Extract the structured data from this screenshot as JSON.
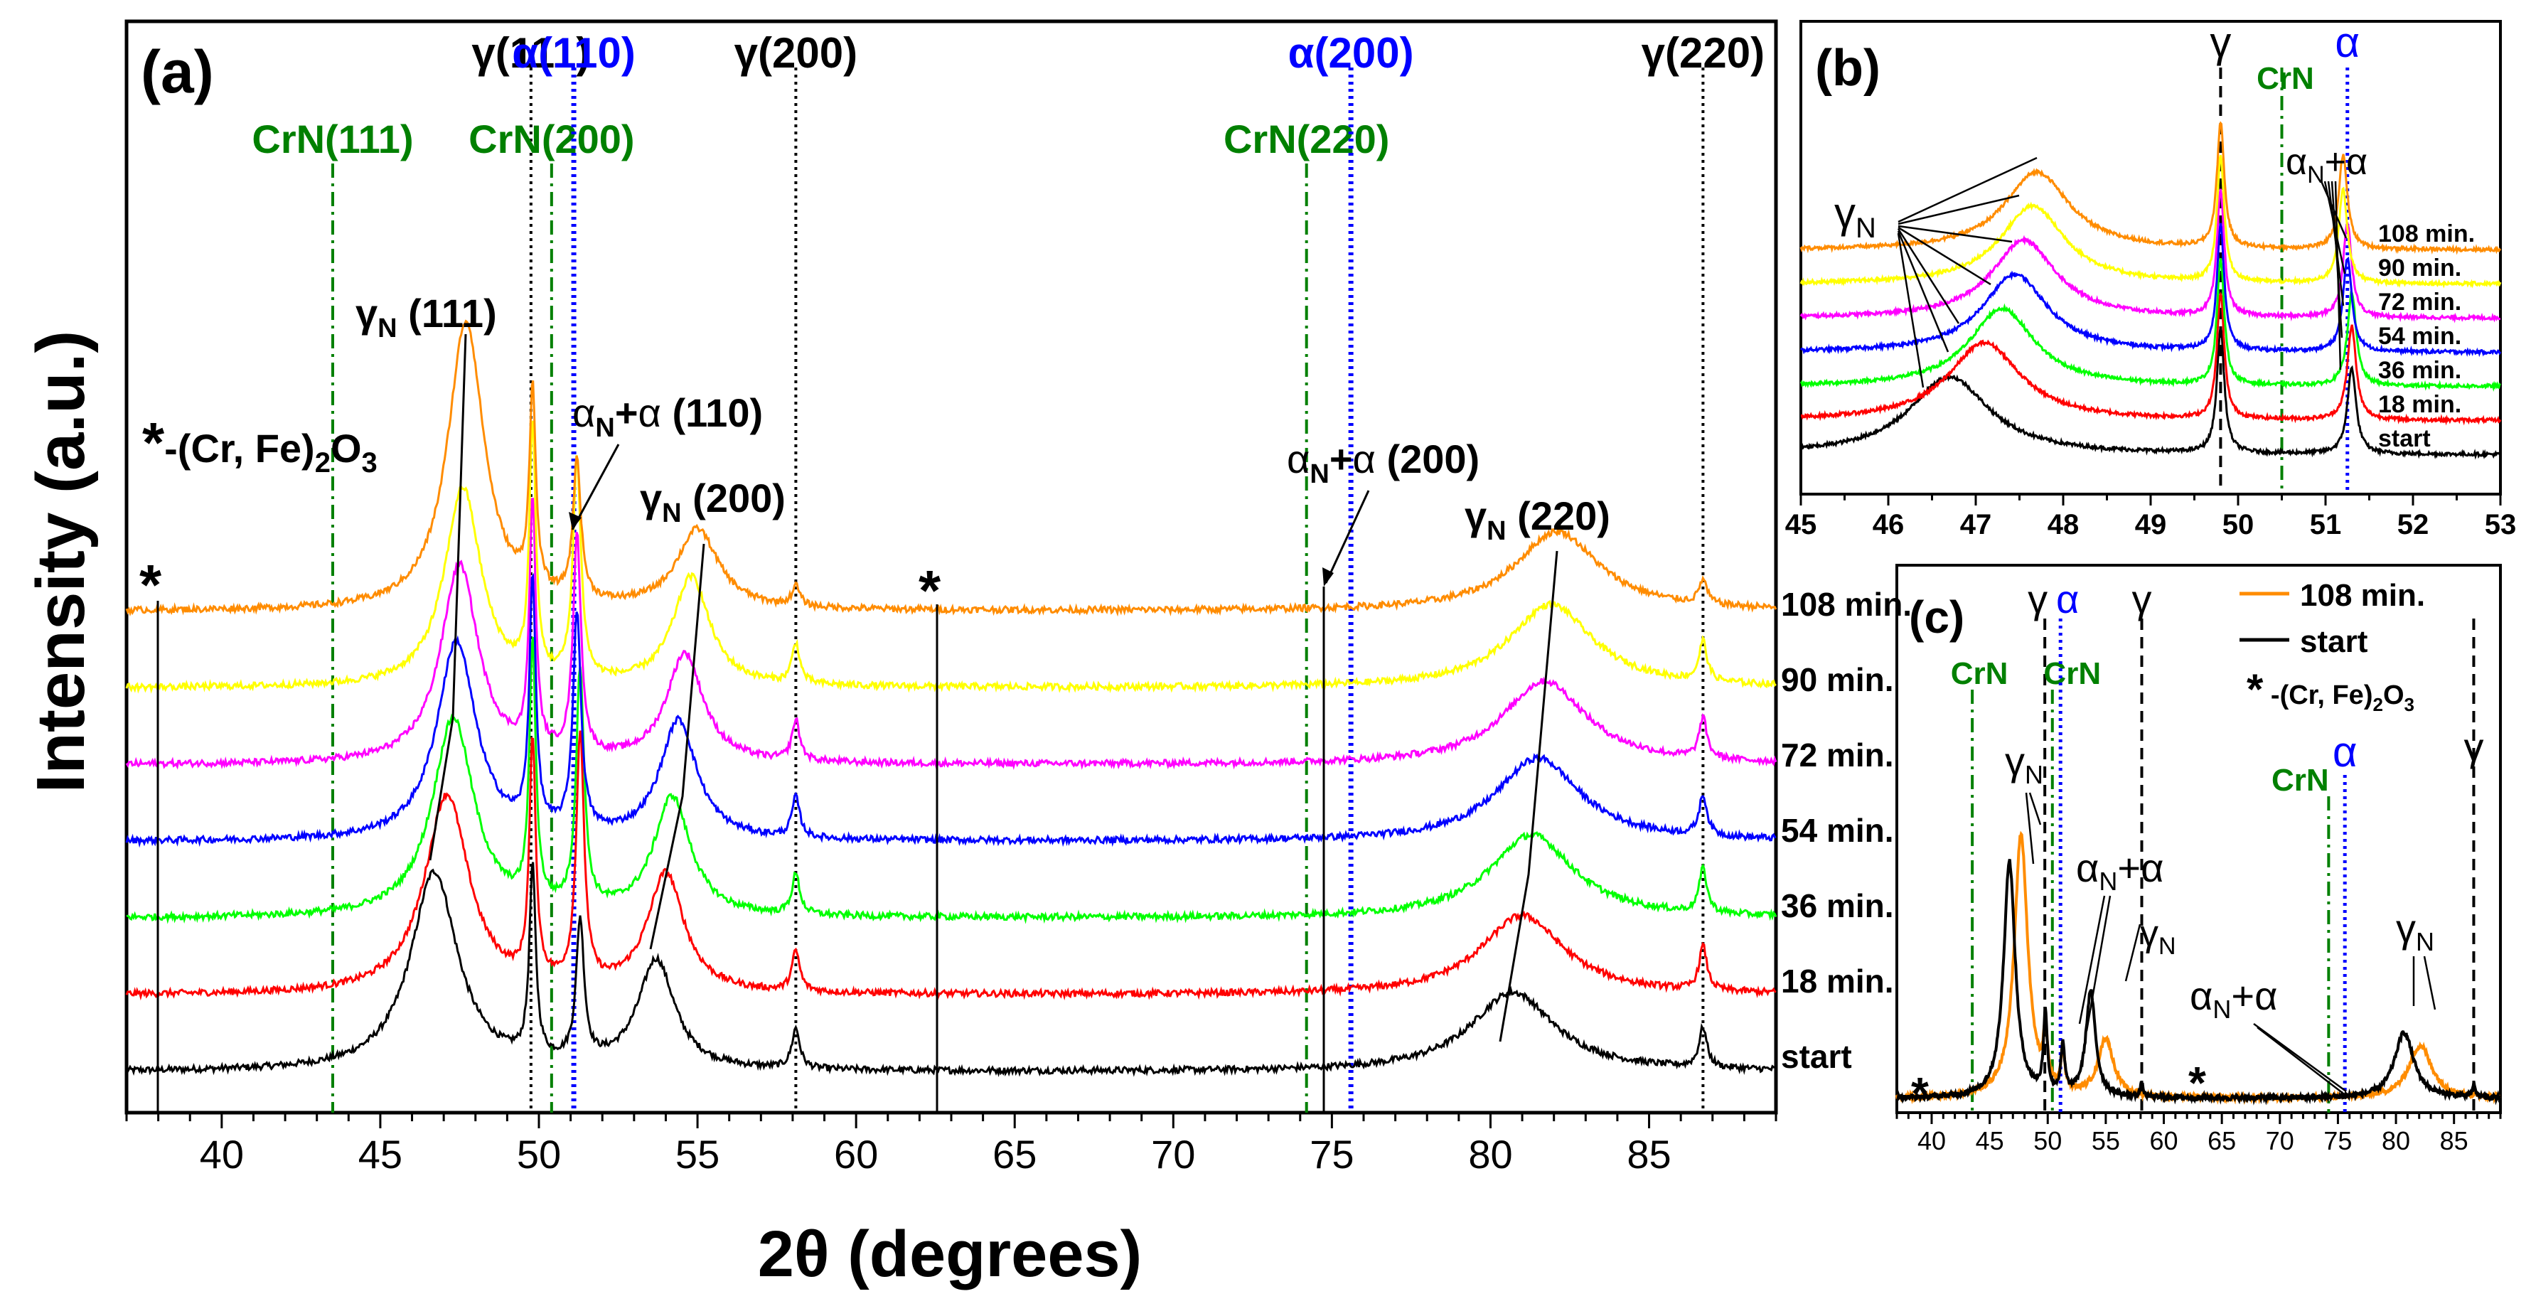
{
  "chart_data": [
    {
      "panel": "(a)",
      "type": "line",
      "xlabel": "2θ (degrees)",
      "ylabel": "Intensity (a.u.)",
      "xlim": [
        37,
        89
      ],
      "xticks": [
        40,
        45,
        50,
        55,
        60,
        65,
        70,
        75,
        80,
        85
      ],
      "series": [
        {
          "name": "start",
          "color": "#000000",
          "offset": 0,
          "ppos": [
            46.7,
            49.8,
            51.3,
            53.7,
            58.1,
            80.7,
            86.7
          ],
          "pamp": [
            1.0,
            0.95,
            0.7,
            0.55,
            0.2,
            0.4,
            0.2
          ],
          "pw": [
            0.9,
            0.12,
            0.15,
            0.7,
            0.15,
            1.6,
            0.15
          ]
        },
        {
          "name": "18 min.",
          "color": "#ff0000",
          "offset": 1,
          "ppos": [
            47.1,
            49.8,
            51.3,
            54.0,
            58.1,
            81.0,
            86.7
          ],
          "pamp": [
            1.0,
            1.2,
            1.25,
            0.6,
            0.2,
            0.4,
            0.22
          ],
          "pw": [
            0.85,
            0.12,
            0.15,
            0.7,
            0.15,
            1.6,
            0.15
          ]
        },
        {
          "name": "36 min.",
          "color": "#00ff00",
          "offset": 2,
          "ppos": [
            47.3,
            49.8,
            51.3,
            54.2,
            58.1,
            81.3,
            86.7
          ],
          "pamp": [
            1.0,
            1.3,
            1.2,
            0.6,
            0.2,
            0.42,
            0.22
          ],
          "pw": [
            0.8,
            0.12,
            0.15,
            0.7,
            0.15,
            1.6,
            0.15
          ]
        },
        {
          "name": "54 min.",
          "color": "#0000ff",
          "offset": 3,
          "ppos": [
            47.4,
            49.8,
            51.2,
            54.4,
            58.1,
            81.5,
            86.7
          ],
          "pamp": [
            1.0,
            1.25,
            1.1,
            0.6,
            0.2,
            0.42,
            0.2
          ],
          "pw": [
            0.75,
            0.12,
            0.15,
            0.7,
            0.15,
            1.6,
            0.15
          ]
        },
        {
          "name": "72 min.",
          "color": "#ff00ff",
          "offset": 4,
          "ppos": [
            47.5,
            49.8,
            51.2,
            54.6,
            58.1,
            81.7,
            86.7
          ],
          "pamp": [
            1.0,
            1.25,
            1.1,
            0.55,
            0.2,
            0.42,
            0.2
          ],
          "pw": [
            0.72,
            0.12,
            0.15,
            0.7,
            0.15,
            1.6,
            0.15
          ]
        },
        {
          "name": "90 min.",
          "color": "#ffff00",
          "offset": 5,
          "ppos": [
            47.6,
            49.8,
            51.2,
            54.8,
            58.1,
            81.9,
            86.7
          ],
          "pamp": [
            1.0,
            1.25,
            1.1,
            0.55,
            0.2,
            0.42,
            0.2
          ],
          "pw": [
            0.7,
            0.12,
            0.15,
            0.7,
            0.15,
            1.6,
            0.15
          ]
        },
        {
          "name": "108 min.",
          "color": "#ff8c00",
          "offset": 6,
          "ppos": [
            47.7,
            49.8,
            51.2,
            55.0,
            58.1,
            82.1,
            86.7
          ],
          "pamp": [
            1.45,
            1.0,
            0.7,
            0.4,
            0.1,
            0.4,
            0.12
          ],
          "pw": [
            0.7,
            0.12,
            0.15,
            0.8,
            0.15,
            1.6,
            0.15
          ]
        }
      ],
      "reference_lines": [
        {
          "x": 43.5,
          "label": "CrN(111)",
          "color": "#008000",
          "style": "dashdot"
        },
        {
          "x": 49.75,
          "label": "γ(111)",
          "color": "#000000",
          "style": "dotted"
        },
        {
          "x": 50.4,
          "label": "CrN(200)",
          "color": "#008000",
          "style": "dashdot"
        },
        {
          "x": 51.1,
          "label": "α(110)",
          "color": "#0000ff",
          "style": "dotted"
        },
        {
          "x": 58.1,
          "label": "γ(200)",
          "color": "#000000",
          "style": "dotted"
        },
        {
          "x": 74.2,
          "label": "CrN(220)",
          "color": "#008000",
          "style": "dashdot"
        },
        {
          "x": 75.6,
          "label": "α(200)",
          "color": "#0000ff",
          "style": "dotted"
        },
        {
          "x": 86.7,
          "label": "γ(220)",
          "color": "#000000",
          "style": "dotted"
        }
      ],
      "annotations": [
        "γN (111)",
        "αN+α (110)",
        "γN (200)",
        "αN+α (200)",
        "γN (220)",
        "*-(Cr, Fe)2O3",
        "*",
        "*"
      ]
    },
    {
      "panel": "(b)",
      "type": "line",
      "xlim": [
        45,
        53
      ],
      "xticks": [
        45,
        46,
        47,
        48,
        49,
        50,
        51,
        52,
        53
      ],
      "series": [
        {
          "name": "start",
          "color": "#000000",
          "offset": 0,
          "ppos": [
            46.7,
            49.8,
            51.3
          ],
          "pamp": [
            1.0,
            1.6,
            1.1
          ],
          "pw": [
            0.55,
            0.05,
            0.06
          ]
        },
        {
          "name": "18 min.",
          "color": "#ff0000",
          "offset": 1,
          "ppos": [
            47.1,
            49.8,
            51.3
          ],
          "pamp": [
            1.0,
            1.6,
            1.2
          ],
          "pw": [
            0.5,
            0.05,
            0.06
          ]
        },
        {
          "name": "36 min.",
          "color": "#00ff00",
          "offset": 2,
          "ppos": [
            47.3,
            49.8,
            51.3
          ],
          "pamp": [
            1.0,
            1.6,
            1.2
          ],
          "pw": [
            0.45,
            0.05,
            0.06
          ]
        },
        {
          "name": "54 min.",
          "color": "#0000ff",
          "offset": 3,
          "ppos": [
            47.45,
            49.8,
            51.25
          ],
          "pamp": [
            1.0,
            1.6,
            1.2
          ],
          "pw": [
            0.45,
            0.05,
            0.06
          ]
        },
        {
          "name": "72 min.",
          "color": "#ff00ff",
          "offset": 4,
          "ppos": [
            47.55,
            49.8,
            51.25
          ],
          "pamp": [
            1.0,
            1.6,
            1.2
          ],
          "pw": [
            0.45,
            0.05,
            0.06
          ]
        },
        {
          "name": "90 min.",
          "color": "#ffff00",
          "offset": 5,
          "ppos": [
            47.65,
            49.8,
            51.2
          ],
          "pamp": [
            1.0,
            1.6,
            1.2
          ],
          "pw": [
            0.45,
            0.05,
            0.06
          ]
        },
        {
          "name": "108 min.",
          "color": "#ff8c00",
          "offset": 6,
          "ppos": [
            47.7,
            49.8,
            51.2
          ],
          "pamp": [
            1.0,
            1.6,
            1.2
          ],
          "pw": [
            0.45,
            0.05,
            0.06
          ]
        }
      ],
      "reference_lines": [
        {
          "x": 49.8,
          "label": "γ",
          "color": "#000000",
          "style": "dashed"
        },
        {
          "x": 50.5,
          "label": "CrN",
          "color": "#008000",
          "style": "dashdot"
        },
        {
          "x": 51.25,
          "label": "α",
          "color": "#0000ff",
          "style": "dotted"
        }
      ],
      "annotations": [
        "γN",
        "αN+α"
      ]
    },
    {
      "panel": "(c)",
      "type": "line",
      "xlim": [
        37,
        89
      ],
      "xticks": [
        40,
        45,
        50,
        55,
        60,
        65,
        70,
        75,
        80,
        85
      ],
      "legend": {
        "position": "top-right",
        "entries": [
          "108 min.",
          "start",
          "*-(Cr, Fe)2O3"
        ]
      },
      "series": [
        {
          "name": "108 min.",
          "color": "#ff8c00",
          "ppos": [
            47.7,
            49.8,
            51.3,
            55.0,
            82.1
          ],
          "pamp": [
            1.0,
            0.2,
            0.15,
            0.22,
            0.2
          ],
          "pw": [
            0.7,
            0.2,
            0.2,
            0.8,
            1.2
          ]
        },
        {
          "name": "start",
          "color": "#000000",
          "ppos": [
            46.7,
            49.8,
            51.3,
            53.7,
            58.1,
            80.7,
            86.7
          ],
          "pamp": [
            0.9,
            0.3,
            0.18,
            0.4,
            0.05,
            0.25,
            0.05
          ],
          "pw": [
            0.6,
            0.2,
            0.2,
            0.5,
            0.15,
            1.0,
            0.15
          ]
        }
      ],
      "reference_lines": [
        {
          "x": 43.5,
          "label": "CrN",
          "color": "#008000",
          "style": "dashdot"
        },
        {
          "x": 49.75,
          "label": "γ",
          "color": "#000000",
          "style": "dashed"
        },
        {
          "x": 50.4,
          "label": "CrN",
          "color": "#008000",
          "style": "dashdot"
        },
        {
          "x": 51.1,
          "label": "α",
          "color": "#0000ff",
          "style": "dotted"
        },
        {
          "x": 58.1,
          "label": "γ",
          "color": "#000000",
          "style": "dashed"
        },
        {
          "x": 74.2,
          "label": "CrN",
          "color": "#008000",
          "style": "dashdot"
        },
        {
          "x": 75.6,
          "label": "α",
          "color": "#0000ff",
          "style": "dotted"
        },
        {
          "x": 86.7,
          "label": "γ",
          "color": "#000000",
          "style": "dashed"
        }
      ],
      "annotations": [
        "γN",
        "αN+α",
        "γN",
        "αN+α",
        "γN",
        "*",
        "*"
      ]
    }
  ]
}
